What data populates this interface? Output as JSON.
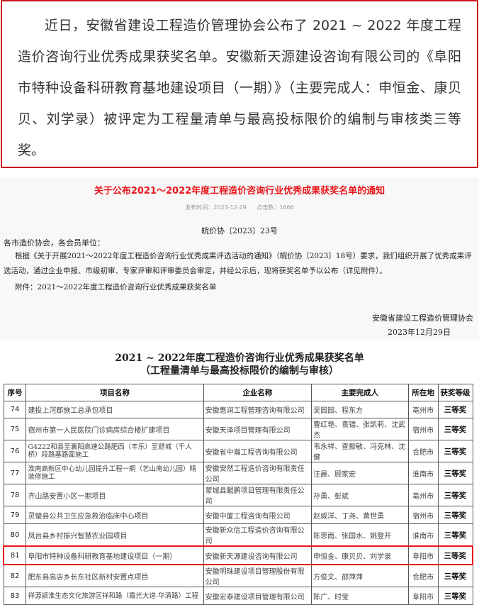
{
  "intro": {
    "text": "近日，安徽省建设工程造价管理协会公布了 2021 ~ 2022 年度工程造价咨询行业优秀成果获奖名单。安徽新天源建设咨询有限公司的《阜阳市特种设备科研教育基地建设项目（一期）》（主要完成人：申恒金、康贝贝、刘学录）被评定为工程量清单与最高投标限价的编制与审核类三等奖。",
    "border_color": "#c8161d"
  },
  "notice": {
    "title": "关于公布2021～2022年度工程造价咨询行业优秀成果获奖名单的通知",
    "publish_time": "发布时间：2023-12-29",
    "clicks": "点击数：1666",
    "doc_no": "皖价协〔2023〕23号",
    "greeting": "各市造价协会，各会员单位：",
    "body": "根据《关于开展2021～2022年度工程造价咨询行业优秀成果评选活动的通知》（皖价协〔2023〕18号）要求，我们组织开展了优秀成果评选活动，通过企业申报、市级初审、专家评审和评审委员会审定，并经公示后，现将获奖名单予以公布（详见附件）。",
    "attachment": "附件：2021～2022年度工程造价咨询行业优秀成果获奖名单",
    "org": "安徽省建设工程造价管理协会",
    "date": "2023年12月29日"
  },
  "table": {
    "title": "2021 ~ 2022年度工程造价咨询行业优秀成果获奖名单",
    "subtitle": "（工程量清单与最高投标限价的编制与审核）",
    "headers": [
      "序号",
      "项目名称",
      "企业名称",
      "主要完成人",
      "所在地",
      "获奖等级"
    ],
    "rows": [
      [
        "74",
        "建投上河郡施工总承包项目",
        "安徽惠润工程管理咨询有限公司",
        "吴园园、程东方",
        "亳州市",
        "三等奖"
      ],
      [
        "75",
        "宿州市第一人民医院门诊病房综合楼扩建项目",
        "安徽天泽项目管理有限公司",
        "曹红艳、袁镭、张凯莉、沈武杰",
        "宿州市",
        "三等奖"
      ],
      [
        "76",
        "G4222和县至襄阳高速公路肥西（丰乐）至舒城（千人桥）段路基路面施工",
        "安徽省中瀚工程咨询有限公司",
        "韦永祥、查振敏、冯克林、沈健",
        "合肥市",
        "三等奖"
      ],
      [
        "77",
        "淮南高新区中心幼儿园提升工程一期（艺山南幼儿园）精装修施工",
        "安徽安然工程造价咨询有限责任公司",
        "汪晨、顾家宏",
        "淮南市",
        "三等奖"
      ],
      [
        "78",
        "齐山路安置小区一期项目",
        "蒙城县鲲鹏项目管理有限责任公司",
        "孙勇、彭斌",
        "亳州市",
        "三等奖"
      ],
      [
        "79",
        "灵璧县公共卫生应急救治临床中心项目",
        "安徽中厦工程咨询有限公司",
        "赵威洋、丁尧、黄世勇",
        "宿州市",
        "三等奖"
      ],
      [
        "80",
        "凤台县乡村振兴智慧农业园项目",
        "安徽新众信工程造价咨询有限公司",
        "陈思雨、张国水、姚登开",
        "淮南市",
        "三等奖"
      ],
      [
        "81",
        "阜阳市特种设备科研教育基地建设项目（一期）",
        "安徽新天源建设咨询有限公司",
        "申恒金、康贝贝、刘学录",
        "阜阳市",
        "三等奖"
      ],
      [
        "82",
        "肥东县高店乡长东社区新村安置点项目",
        "安徽明珠建设项目管理股份有限公司",
        "方俊文、邵萍萍",
        "合肥市",
        "三等奖"
      ],
      [
        "83",
        "祥源颍淮生态文化旅游区祥和路（霞光大道-华清路）工程",
        "安徽宏泰建设项目管理有限公司",
        "陈广、时莹",
        "阜阳市",
        "三等奖"
      ]
    ],
    "highlighted_row": "81",
    "highlight_color": "#e8151a"
  }
}
